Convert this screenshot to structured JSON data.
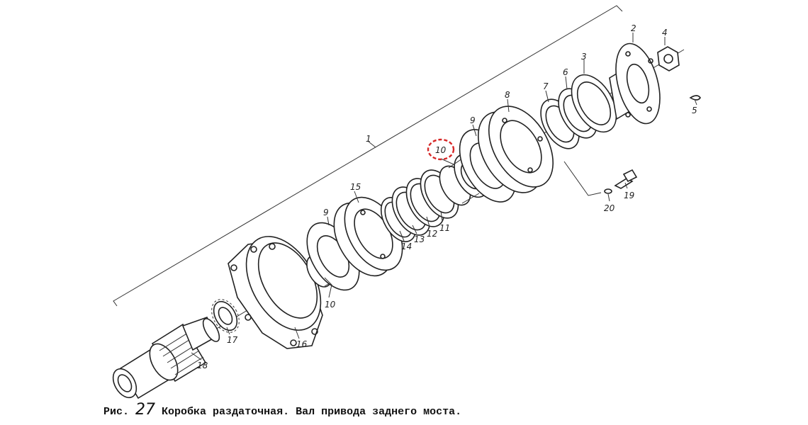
{
  "parts": {
    "p1": "1",
    "p2": "2",
    "p3": "3",
    "p4": "4",
    "p5": "5",
    "p6": "6",
    "p7": "7",
    "p8": "8",
    "p9a": "9",
    "p9b": "9",
    "p10a": "10",
    "p10b": "10",
    "p11": "11",
    "p12": "12",
    "p13": "13",
    "p14": "14",
    "p15": "15",
    "p16": "16",
    "p17": "17",
    "p18": "18",
    "p19": "19",
    "p20": "20"
  },
  "highlight": {
    "part": "10",
    "color": "#d62828"
  },
  "caption": {
    "prefix": "Рис.",
    "number": "27",
    "text": "Коробка раздаточная. Вал привода заднего моста."
  }
}
